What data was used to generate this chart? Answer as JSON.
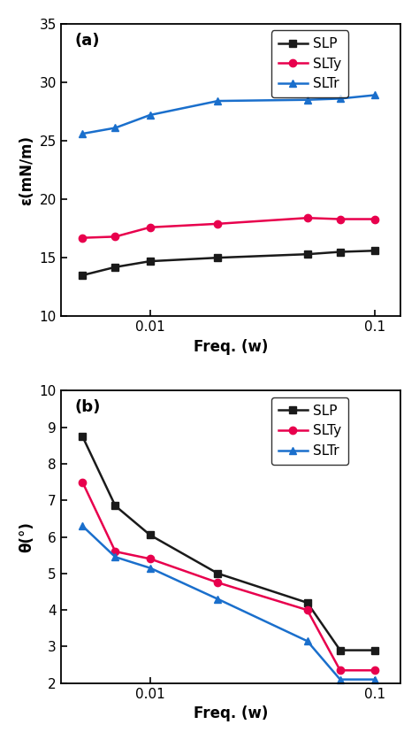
{
  "freq_a": [
    0.005,
    0.007,
    0.01,
    0.02,
    0.05,
    0.07,
    0.1
  ],
  "SLP_a": [
    13.5,
    14.2,
    14.7,
    15.0,
    15.3,
    15.5,
    15.6
  ],
  "SLTy_a": [
    16.7,
    16.8,
    17.6,
    17.9,
    18.4,
    18.3,
    18.3
  ],
  "SLTr_a": [
    25.6,
    26.1,
    27.2,
    28.4,
    28.5,
    28.6,
    28.9
  ],
  "freq_b": [
    0.005,
    0.007,
    0.01,
    0.02,
    0.05,
    0.07,
    0.1
  ],
  "SLP_b": [
    8.75,
    6.85,
    6.05,
    5.0,
    4.2,
    2.9,
    2.9
  ],
  "SLTy_b": [
    7.5,
    5.6,
    5.4,
    4.75,
    4.0,
    2.35,
    2.35
  ],
  "SLTr_b": [
    6.3,
    5.45,
    5.15,
    4.3,
    3.15,
    2.1,
    2.1
  ],
  "color_SLP": "#1a1a1a",
  "color_SLTy": "#e8004d",
  "color_SLTr": "#1a6fcc",
  "ylabel_a": "ε(mN/m)",
  "ylabel_b": "θ(°)",
  "xlabel": "Freq. (w)",
  "label_a": "(a)",
  "label_b": "(b)",
  "ylim_a": [
    10,
    35
  ],
  "yticks_a": [
    10,
    15,
    20,
    25,
    30,
    35
  ],
  "ylim_b": [
    2,
    10
  ],
  "yticks_b": [
    2,
    3,
    4,
    5,
    6,
    7,
    8,
    9,
    10
  ],
  "xlim": [
    0.004,
    0.13
  ]
}
